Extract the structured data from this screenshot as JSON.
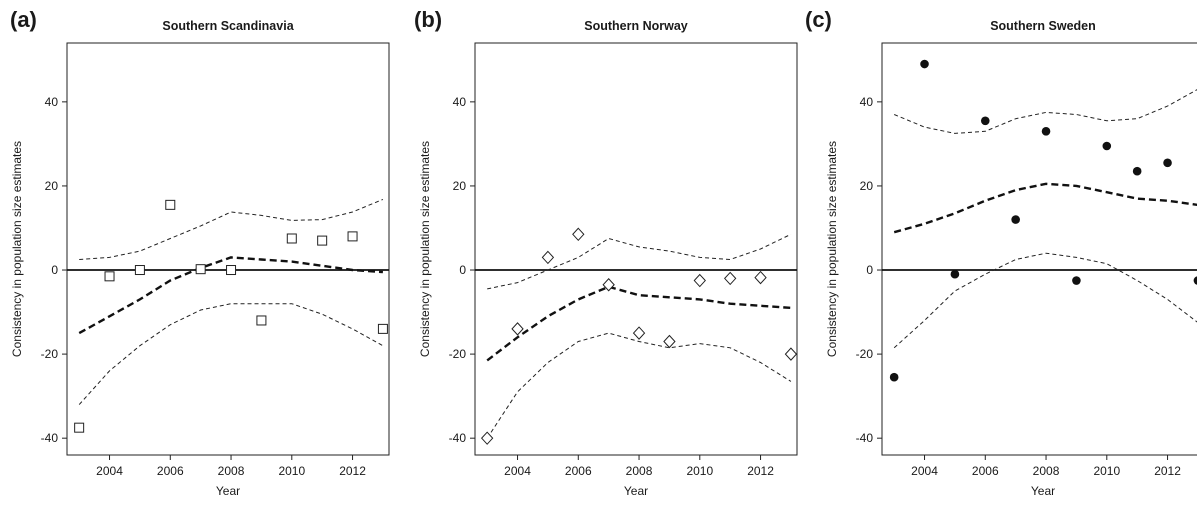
{
  "figure": {
    "xlabel": "Year",
    "ylabel": "Consistency in population size estimates"
  },
  "chart_data": [
    {
      "panel_label": "(a)",
      "title": "Southern Scandinavia",
      "type": "scatter",
      "marker": "square-open",
      "xlabel": "Year",
      "ylabel": "Consistency in population size estimates",
      "xlim": [
        2002.6,
        2013.2
      ],
      "ylim": [
        -44,
        54
      ],
      "xticks": [
        2004,
        2006,
        2008,
        2010,
        2012
      ],
      "yticks": [
        -40,
        -20,
        0,
        20,
        40
      ],
      "xtick_labels": [
        "2004",
        "2006",
        "2008",
        "2010",
        "2012"
      ],
      "ytick_labels": [
        "-40",
        "-20",
        "0",
        "20",
        "40"
      ],
      "reference_line": 0,
      "points": {
        "x": [
          2003,
          2004,
          2005,
          2006,
          2007,
          2008,
          2009,
          2010,
          2011,
          2012,
          2013
        ],
        "y": [
          -37.5,
          -1.5,
          0,
          15.5,
          0.2,
          0,
          -12,
          7.5,
          7,
          8,
          -14
        ]
      },
      "trend": {
        "x": [
          2003,
          2004,
          2005,
          2006,
          2007,
          2008,
          2009,
          2010,
          2011,
          2012,
          2013
        ],
        "fit": [
          -15,
          -11,
          -7,
          -2.5,
          0.5,
          3,
          2.5,
          2,
          1,
          0,
          -0.5
        ],
        "lower": [
          -32,
          -24,
          -18,
          -13,
          -9.5,
          -8,
          -8,
          -8,
          -10.5,
          -14,
          -18
        ],
        "upper": [
          2.5,
          3,
          4.5,
          7.5,
          10.5,
          13.8,
          13,
          11.8,
          12,
          13.8,
          16.8
        ]
      }
    },
    {
      "panel_label": "(b)",
      "title": "Southern Norway",
      "type": "scatter",
      "marker": "diamond-open",
      "xlabel": "Year",
      "ylabel": "Consistency in population size estimates",
      "xlim": [
        2002.6,
        2013.2
      ],
      "ylim": [
        -44,
        54
      ],
      "xticks": [
        2004,
        2006,
        2008,
        2010,
        2012
      ],
      "yticks": [
        -40,
        -20,
        0,
        20,
        40
      ],
      "xtick_labels": [
        "2004",
        "2006",
        "2008",
        "2010",
        "2012"
      ],
      "ytick_labels": [
        "-40",
        "-20",
        "0",
        "20",
        "40"
      ],
      "reference_line": 0,
      "points": {
        "x": [
          2003,
          2004,
          2005,
          2006,
          2007,
          2008,
          2009,
          2010,
          2011,
          2012,
          2013
        ],
        "y": [
          -40,
          -14,
          3,
          8.5,
          -3.5,
          -15,
          -17,
          -2.5,
          -2,
          -1.8,
          -20
        ]
      },
      "trend": {
        "x": [
          2003,
          2004,
          2005,
          2006,
          2007,
          2008,
          2009,
          2010,
          2011,
          2012,
          2013
        ],
        "fit": [
          -21.5,
          -16,
          -11,
          -7,
          -4,
          -6,
          -6.5,
          -7,
          -8,
          -8.5,
          -9
        ],
        "lower": [
          -40,
          -29,
          -22,
          -17,
          -15,
          -17,
          -18.5,
          -17.5,
          -18.5,
          -22,
          -26.5
        ],
        "upper": [
          -4.5,
          -3,
          0,
          3,
          7.5,
          5.5,
          4.5,
          3,
          2.5,
          5,
          8.5
        ]
      }
    },
    {
      "panel_label": "(c)",
      "title": "Southern Sweden",
      "type": "scatter",
      "marker": "circle-filled",
      "xlabel": "Year",
      "ylabel": "Consistency in population size estimates",
      "xlim": [
        2002.6,
        2013.2
      ],
      "ylim": [
        -44,
        54
      ],
      "xticks": [
        2004,
        2006,
        2008,
        2010,
        2012
      ],
      "yticks": [
        -40,
        -20,
        0,
        20,
        40
      ],
      "xtick_labels": [
        "2004",
        "2006",
        "2008",
        "2010",
        "2012"
      ],
      "ytick_labels": [
        "-40",
        "-20",
        "0",
        "20",
        "40"
      ],
      "reference_line": 0,
      "points": {
        "x": [
          2003,
          2004,
          2005,
          2006,
          2007,
          2008,
          2009,
          2010,
          2011,
          2012,
          2013
        ],
        "y": [
          -25.5,
          49,
          -1,
          35.5,
          12,
          33,
          -2.5,
          29.5,
          23.5,
          25.5,
          -2.5
        ]
      },
      "trend": {
        "x": [
          2003,
          2004,
          2005,
          2006,
          2007,
          2008,
          2009,
          2010,
          2011,
          2012,
          2013
        ],
        "fit": [
          9,
          11,
          13.5,
          16.5,
          19,
          20.5,
          20,
          18.5,
          17,
          16.5,
          15.5
        ],
        "lower": [
          -18.5,
          -12,
          -5,
          -1,
          2.5,
          4,
          3,
          1.5,
          -2.5,
          -7,
          -12.5
        ],
        "upper": [
          37,
          34,
          32.5,
          33,
          36,
          37.5,
          37,
          35.5,
          36,
          39,
          43
        ]
      }
    }
  ]
}
